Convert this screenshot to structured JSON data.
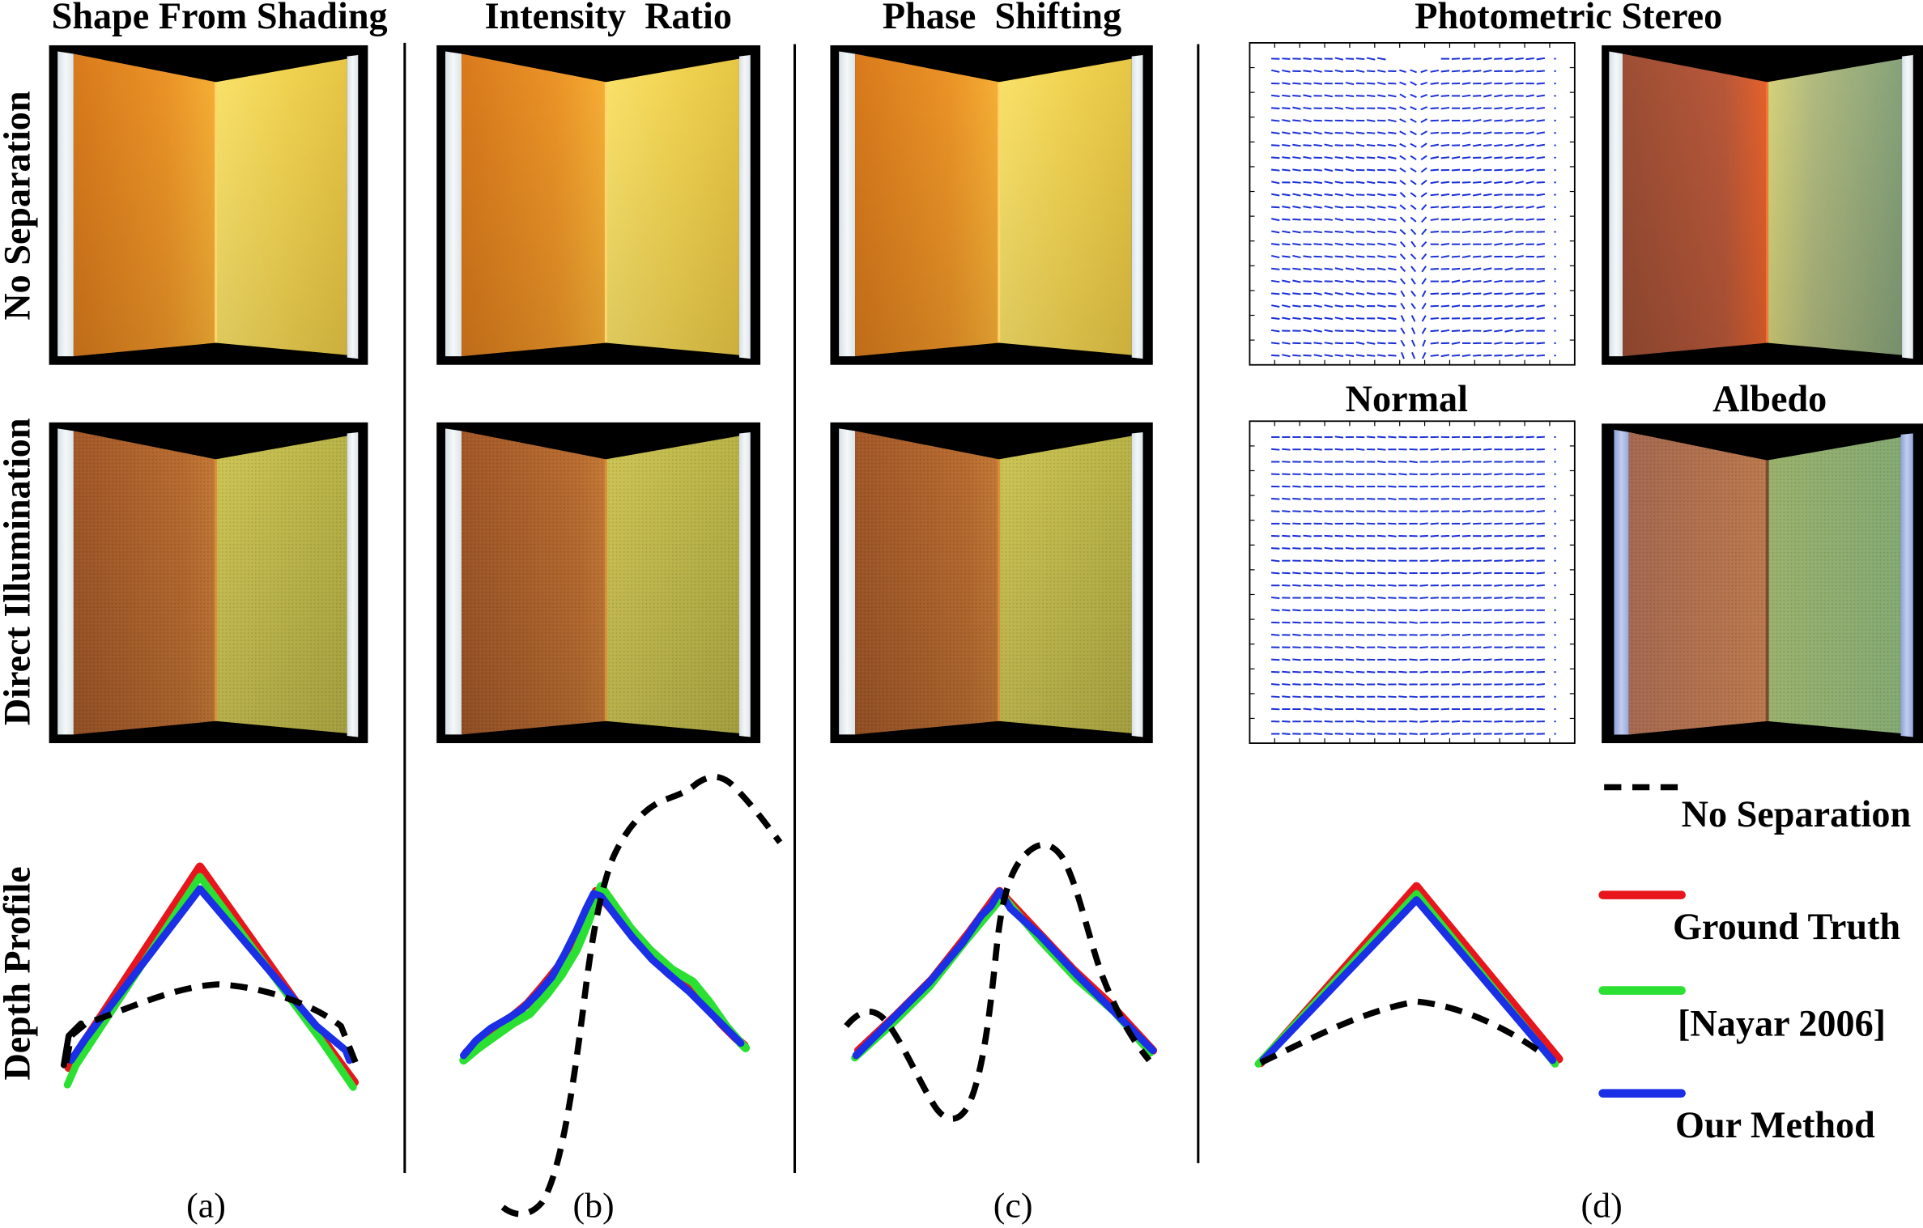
{
  "column_titles": {
    "shape_from_shading": "Shape From Shading",
    "intensity_ratio": "Intensity  Ratio",
    "phase_shifting": "Phase  Shifting",
    "photometric_stereo": "Photometric Stereo"
  },
  "row_labels": {
    "no_separation": "No Separation",
    "direct_illumination": "Direct Illumination",
    "depth_profile": "Depth Profile"
  },
  "subpanel_labels": {
    "normal": "Normal",
    "albedo": "Albedo"
  },
  "legend": [
    {
      "label": "No Separation",
      "color": "#000000"
    },
    {
      "label": "Ground Truth",
      "color": "#e8161c"
    },
    {
      "label": "[Nayar 2006]",
      "color": "#2ae032"
    },
    {
      "label": "Our Method",
      "color": "#1a2fe6"
    }
  ],
  "captions": [
    "(a)",
    "(b)",
    "(c)",
    "(d)"
  ],
  "colors": {
    "vector_field": "#1a2fd8"
  }
}
